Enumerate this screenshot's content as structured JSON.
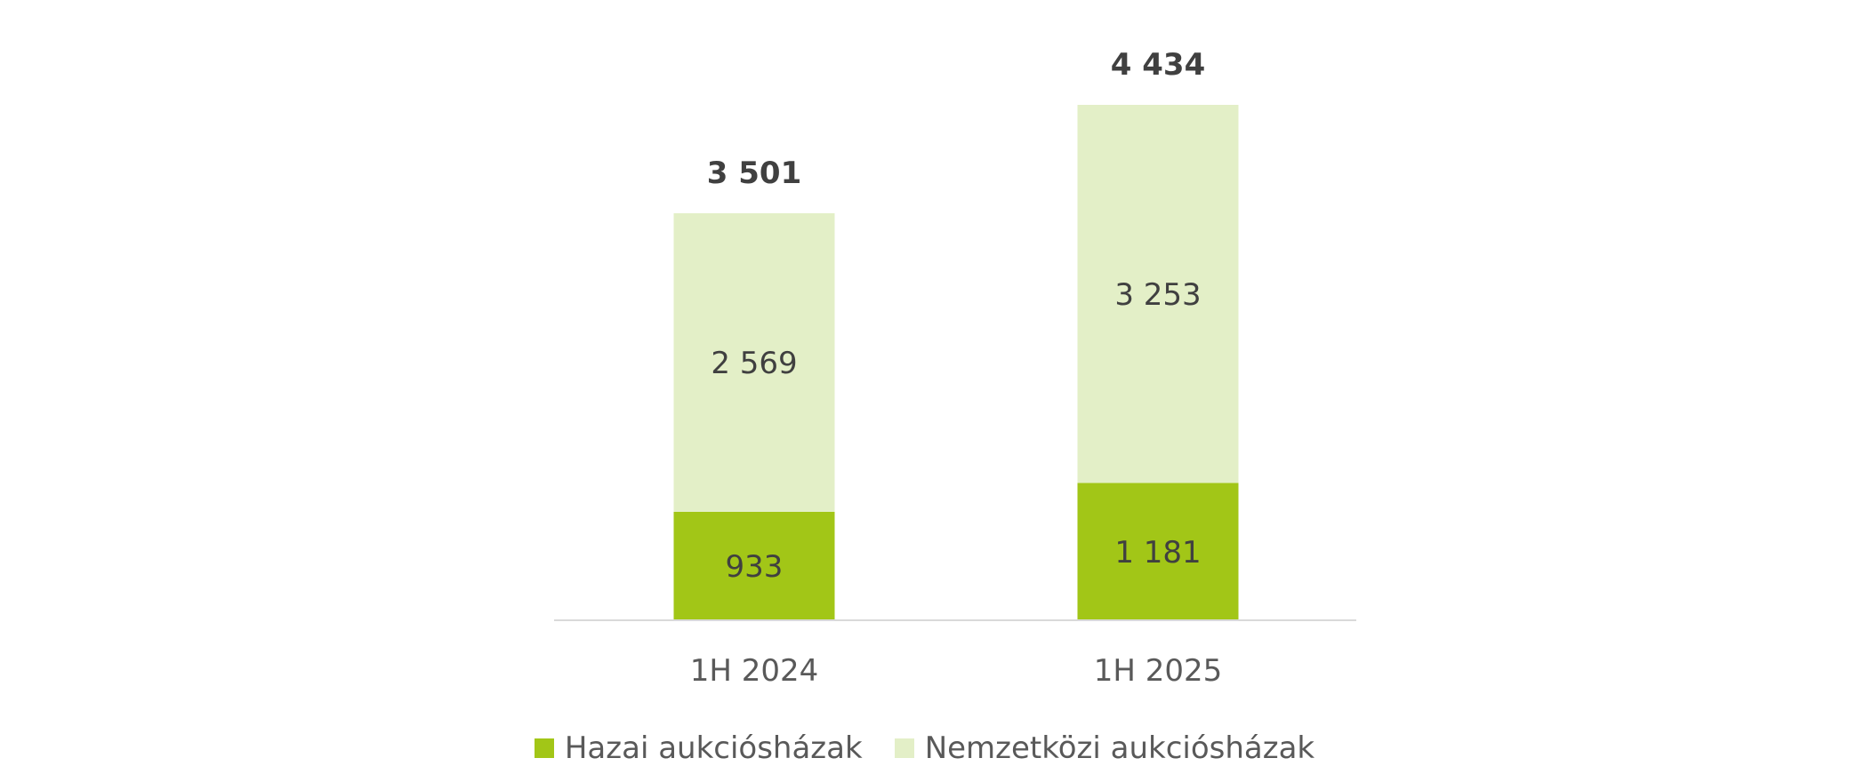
{
  "chart_data": {
    "type": "bar",
    "stacked": true,
    "categories": [
      "1H 2024",
      "1H 2025"
    ],
    "series": [
      {
        "name": "Hazai aukciósházak",
        "values": [
          933,
          1181
        ],
        "labels": [
          "933",
          "1 181"
        ],
        "color": "#a2c617"
      },
      {
        "name": "Nemzetközi aukciósházak",
        "values": [
          2569,
          3253
        ],
        "labels": [
          "2 569",
          "3 253"
        ],
        "color": "#e3efc7"
      }
    ],
    "totals": [
      3501,
      4434
    ],
    "total_labels": [
      "3 501",
      "4 434"
    ],
    "ylim": [
      0,
      4434
    ],
    "legend_position": "bottom",
    "grid": false,
    "colors": {
      "axis": "#d9d9d9",
      "text": "#404040",
      "category_text": "#595959"
    }
  }
}
